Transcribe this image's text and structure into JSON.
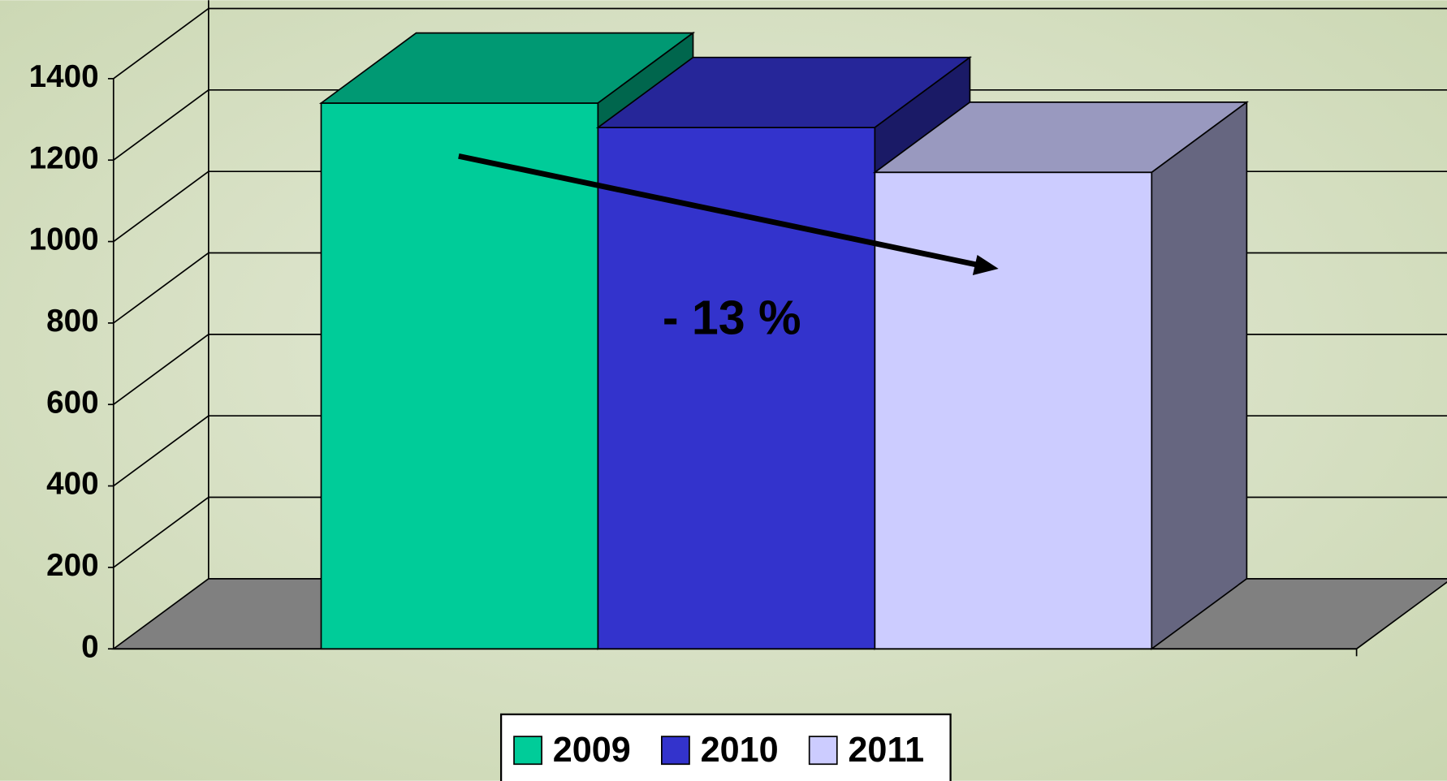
{
  "chart_data": {
    "type": "bar3d",
    "categories": [
      null
    ],
    "series": [
      {
        "name": "2009",
        "color": "#00cc99",
        "values": [
          1340
        ]
      },
      {
        "name": "2010",
        "color": "#3333cc",
        "values": [
          1280
        ]
      },
      {
        "name": "2011",
        "color": "#ccccff",
        "values": [
          1170
        ]
      }
    ],
    "ylim": [
      0,
      1400
    ],
    "yticks": [
      0,
      200,
      400,
      600,
      800,
      1000,
      1200,
      1400
    ],
    "grid": true,
    "legend": "bottom",
    "annotation": "- 13 %"
  }
}
